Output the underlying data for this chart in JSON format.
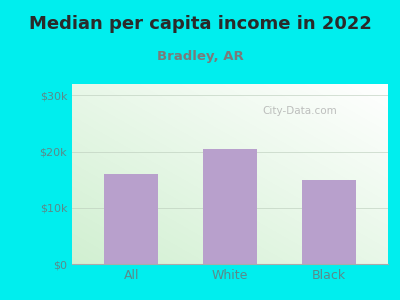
{
  "title": "Median per capita income in 2022",
  "subtitle": "Bradley, AR",
  "categories": [
    "All",
    "White",
    "Black"
  ],
  "values": [
    16000,
    20500,
    15000
  ],
  "bar_color": "#b8a0cc",
  "title_fontsize": 13,
  "subtitle_fontsize": 9.5,
  "title_color": "#2a2a2a",
  "subtitle_color": "#7a7a7a",
  "tick_label_color": "#5a8a8a",
  "bg_outer": "#00eeee",
  "ylim": [
    0,
    32000
  ],
  "yticks": [
    0,
    10000,
    20000,
    30000
  ],
  "ytick_labels": [
    "$0",
    "$10k",
    "$20k",
    "$30k"
  ],
  "watermark": "City-Data.com",
  "chart_bg_top": "#ffffff",
  "chart_bg_bottom": "#d8f0d8"
}
